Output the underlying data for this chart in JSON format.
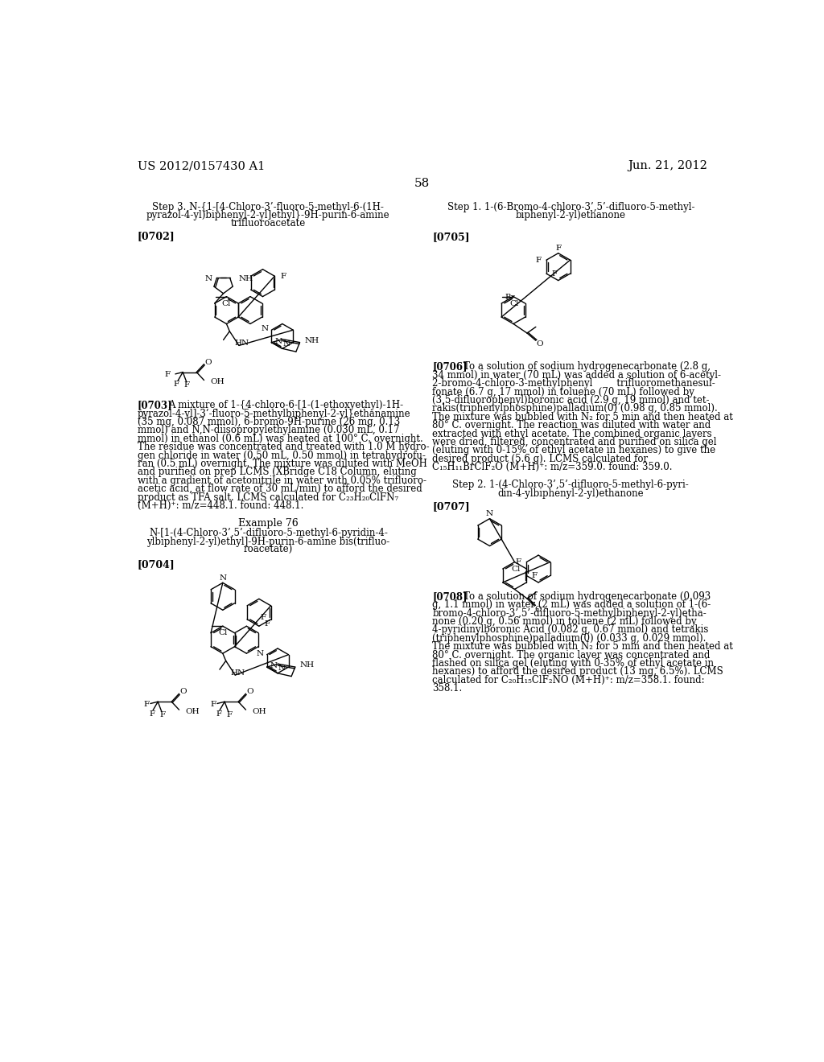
{
  "bg_color": "#ffffff",
  "header_left": "US 2012/0157430 A1",
  "header_right": "Jun. 21, 2012",
  "page_number": "58",
  "para703_lines": [
    "A mixture of 1-{4-chloro-6-[1-(1-ethoxyethyl)-1H-",
    "pyrazol-4-yl]-3’-fluoro-5-methylbiphenyl-2-yl}ethanamine",
    "(35 mg, 0.087 mmol), 6-bromo-9H-purine (26 mg, 0.13",
    "mmol) and N,N-diisopropylethylamine (0.030 mL, 0.17",
    "mmol) in ethanol (0.6 mL) was heated at 100° C. overnight.",
    "The residue was concentrated and treated with 1.0 M hydro-",
    "gen chloride in water (0.50 mL, 0.50 mmol) in tetrahydrofu-",
    "ran (0.5 mL) overnight. The mixture was diluted with MeOH",
    "and purified on prep LCMS (XBridge C18 Column, eluting",
    "with a gradient of acetonitrile in water with 0.05% trifluoro-",
    "acetic acid, at flow rate of 30 mL/min) to afford the desired",
    "product as TFA salt. LCMS calculated for C₂₃H₂₀ClFN₇",
    "(M+H)⁺: m/z=448.1. found: 448.1."
  ],
  "para706_lines": [
    "To a solution of sodium hydrogenecarbonate (2.8 g,",
    "34 mmol) in water (70 mL) was added a solution of 6-acetyl-",
    "2-bromo-4-chloro-3-methylphenyl        trifluoromethanesul-",
    "fonate (6.7 g, 17 mmol) in toluene (70 mL) followed by",
    "(3,5-difluorophenyl)boronic acid (2.9 g, 19 mmol) and tet-",
    "rakis(triphenylphosphine)palladium(0) (0.98 g, 0.85 mmol).",
    "The mixture was bubbled with N₂ for 5 min and then heated at",
    "80° C. overnight. The reaction was diluted with water and",
    "extracted with ethyl acetate. The combined organic layers",
    "were dried, filtered, concentrated and purified on silica gel",
    "(eluting with 0-15% of ethyl acetate in hexanes) to give the",
    "desired product (5.6 g). LCMS calculated for",
    "C₁₅H₁₁BrClF₂O (M+H)⁺: m/z=359.0. found: 359.0."
  ],
  "para708_lines": [
    "To a solution of sodium hydrogenecarbonate (0.093",
    "g, 1.1 mmol) in water (2 mL) was added a solution of 1-(6-",
    "bromo-4-chloro-3’,5’-difluoro-5-methylbiphenyl-2-yl)etha-",
    "none (0.20 g, 0.56 mmol) in toluene (2 mL) followed by",
    "4-pyridinylboronic Acid (0.082 g, 0.67 mmol) and tetrakis",
    "(triphenylphosphine)palladium(0) (0.033 g, 0.029 mmol).",
    "The mixture was bubbled with N₂ for 5 min and then heated at",
    "80° C. overnight. The organic layer was concentrated and",
    "flashed on silica gel (eluting with 0-35% of ethyl acetate in",
    "hexanes) to afford the desired product (13 mg, 6.5%). LCMS",
    "calculated for C₂₀H₁₅ClF₂NO (M+H)⁺: m/z=358.1. found:",
    "358.1."
  ]
}
